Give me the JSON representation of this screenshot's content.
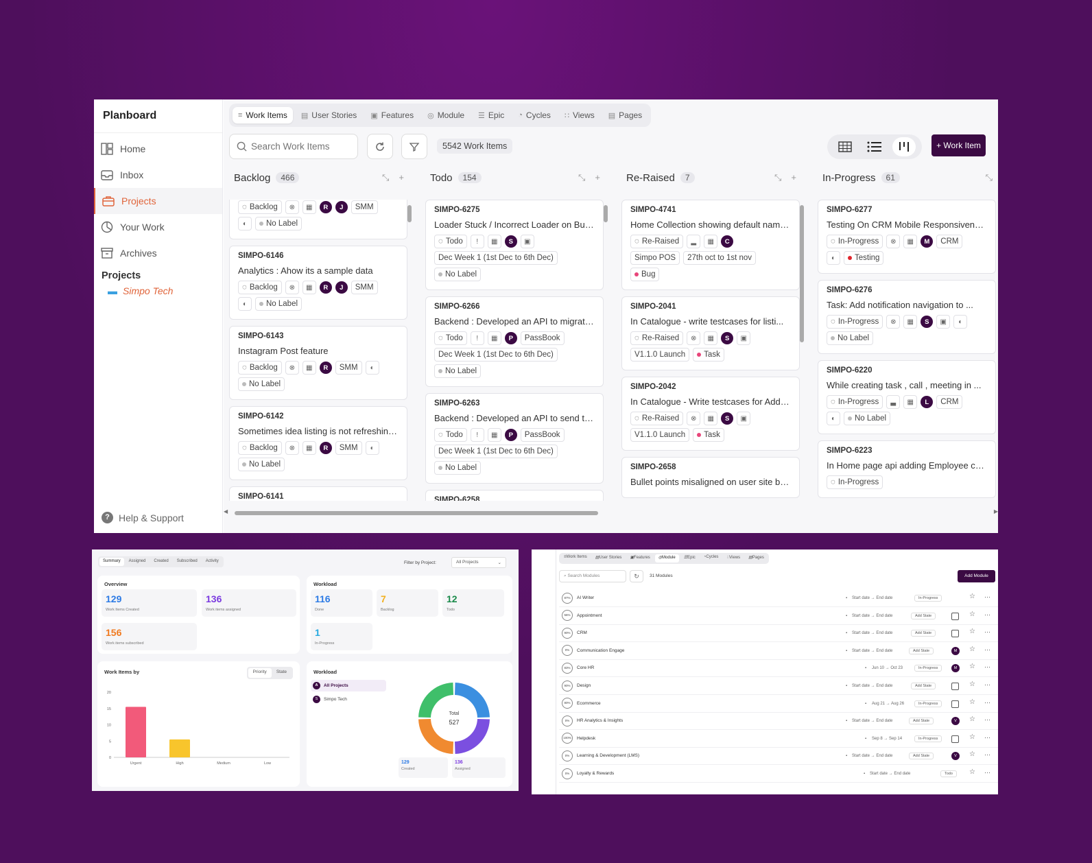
{
  "app": {
    "title": "Planboard"
  },
  "sidebar": {
    "items": [
      {
        "label": "Home",
        "icon": "layout-icon"
      },
      {
        "label": "Inbox",
        "icon": "inbox-icon"
      },
      {
        "label": "Projects",
        "icon": "briefcase-icon"
      },
      {
        "label": "Your Work",
        "icon": "chart-pie-icon"
      },
      {
        "label": "Archives",
        "icon": "archive-icon"
      }
    ],
    "projects_title": "Projects",
    "project": "Simpo Tech",
    "help": "Help & Support"
  },
  "tabs": [
    "Work Items",
    "User Stories",
    "Features",
    "Module",
    "Epic",
    "Cycles",
    "Views",
    "Pages"
  ],
  "toolbar": {
    "search_placeholder": "Search Work Items",
    "count": "5542 Work Items",
    "add_label": "+ Work Item"
  },
  "columns": [
    {
      "title": "Backlog",
      "count": "466",
      "cards": [
        {
          "id": "",
          "title": "",
          "rows": [
            [
              {
                "c": "Backlog"
              },
              {
                "x": "⊗"
              },
              {
                "x": "▦"
              },
              {
                "av": "R"
              },
              {
                "av": "J"
              },
              {
                "c": "SMM"
              }
            ],
            [
              {
                "x": "◐"
              },
              {
                "dot": "#bbb",
                "c": "No Label"
              }
            ]
          ]
        },
        {
          "id": "SIMPO-6146",
          "title": "Analytics : Ahow its a sample data",
          "rows": [
            [
              {
                "c": "Backlog"
              },
              {
                "x": "⊗"
              },
              {
                "x": "▦"
              },
              {
                "av": "R"
              },
              {
                "av": "J"
              },
              {
                "c": "SMM"
              }
            ],
            [
              {
                "x": "◐"
              },
              {
                "dot": "#bbb",
                "c": "No Label"
              }
            ]
          ]
        },
        {
          "id": "SIMPO-6143",
          "title": "Instagram Post feature",
          "rows": [
            [
              {
                "c": "Backlog"
              },
              {
                "x": "⊗"
              },
              {
                "x": "▦"
              },
              {
                "av": "R"
              },
              {
                "c": "SMM"
              },
              {
                "x": "◐"
              }
            ],
            [
              {
                "dot": "#bbb",
                "c": "No Label"
              }
            ]
          ]
        },
        {
          "id": "SIMPO-6142",
          "title": "Sometimes idea listing is not refreshing...",
          "rows": [
            [
              {
                "c": "Backlog"
              },
              {
                "x": "⊗"
              },
              {
                "x": "▦"
              },
              {
                "av": "R"
              },
              {
                "c": "SMM"
              },
              {
                "x": "◐"
              }
            ],
            [
              {
                "dot": "#bbb",
                "c": "No Label"
              }
            ]
          ]
        },
        {
          "id": "SIMPO-6141",
          "title": "",
          "rows": []
        }
      ]
    },
    {
      "title": "Todo",
      "count": "154",
      "cards": [
        {
          "id": "SIMPO-6275",
          "title": "Loader Stuck / Incorrect Loader on Busin...",
          "rows": [
            [
              {
                "c": "Todo"
              },
              {
                "x": "!"
              },
              {
                "x": "▦"
              },
              {
                "av": "S"
              },
              {
                "x": "▣"
              }
            ],
            [
              {
                "c": "Dec Week 1 (1st Dec to 6th Dec)"
              }
            ],
            [
              {
                "dot": "#bbb",
                "c": "No Label"
              }
            ]
          ]
        },
        {
          "id": "SIMPO-6266",
          "title": "Backend : Developed an API to migrate th...",
          "rows": [
            [
              {
                "c": "Todo"
              },
              {
                "x": "!"
              },
              {
                "x": "▦"
              },
              {
                "av": "P"
              },
              {
                "c": "PassBook"
              }
            ],
            [
              {
                "c": "Dec Week 1 (1st Dec to 6th Dec)"
              }
            ],
            [
              {
                "dot": "#bbb",
                "c": "No Label"
              }
            ]
          ]
        },
        {
          "id": "SIMPO-6263",
          "title": "Backend : Developed an API to send the u...",
          "rows": [
            [
              {
                "c": "Todo"
              },
              {
                "x": "!"
              },
              {
                "x": "▦"
              },
              {
                "av": "P"
              },
              {
                "c": "PassBook"
              }
            ],
            [
              {
                "c": "Dec Week 1 (1st Dec to 6th Dec)"
              }
            ],
            [
              {
                "dot": "#bbb",
                "c": "No Label"
              }
            ]
          ]
        },
        {
          "id": "SIMPO-6258",
          "title": "",
          "rows": []
        }
      ]
    },
    {
      "title": "Re-Raised",
      "count": "7",
      "cards": [
        {
          "id": "SIMPO-4741",
          "title": "Home Collection showing default name(in ...",
          "rows": [
            [
              {
                "c": "Re-Raised"
              },
              {
                "x": "▂"
              },
              {
                "x": "▦"
              },
              {
                "av": "C"
              }
            ],
            [
              {
                "c": "Simpo POS"
              },
              {
                "c": "27th oct to 1st nov"
              }
            ],
            [
              {
                "dot": "#e8457a",
                "c": "Bug"
              }
            ]
          ]
        },
        {
          "id": "SIMPO-2041",
          "title": "In Catalogue - write testcases for listi...",
          "rows": [
            [
              {
                "c": "Re-Raised"
              },
              {
                "x": "⊗"
              },
              {
                "x": "▦"
              },
              {
                "av": "S"
              },
              {
                "x": "▣"
              }
            ],
            [
              {
                "c": "V1.1.0 Launch"
              },
              {
                "dot": "#e8457a",
                "c": "Task"
              }
            ]
          ]
        },
        {
          "id": "SIMPO-2042",
          "title": "In Catalogue - Write testcases for Add n...",
          "rows": [
            [
              {
                "c": "Re-Raised"
              },
              {
                "x": "⊗"
              },
              {
                "x": "▦"
              },
              {
                "av": "S"
              },
              {
                "x": "▣"
              }
            ],
            [
              {
                "c": "V1.1.0 Launch"
              },
              {
                "dot": "#e8457a",
                "c": "Task"
              }
            ]
          ]
        },
        {
          "id": "SIMPO-2658",
          "title": "Bullet points misaligned on user site bu...",
          "rows": []
        }
      ]
    },
    {
      "title": "In-Progress",
      "count": "61",
      "cards": [
        {
          "id": "SIMPO-6277",
          "title": "Testing On CRM Mobile Responsiveness",
          "rows": [
            [
              {
                "c": "In-Progress"
              },
              {
                "x": "⊗"
              },
              {
                "x": "▦"
              },
              {
                "av": "M"
              },
              {
                "c": "CRM"
              }
            ],
            [
              {
                "x": "◐"
              },
              {
                "dot": "#e0252d",
                "c": "Testing"
              }
            ]
          ]
        },
        {
          "id": "SIMPO-6276",
          "title": "Task: Add notification navigation to ...",
          "rows": [
            [
              {
                "c": "In-Progress"
              },
              {
                "x": "⊗"
              },
              {
                "x": "▦"
              },
              {
                "av": "S"
              },
              {
                "x": "▣"
              },
              {
                "x": "◐"
              }
            ],
            [
              {
                "dot": "#bbb",
                "c": "No Label"
              }
            ]
          ]
        },
        {
          "id": "SIMPO-6220",
          "title": "While creating task , call , meeting in ...",
          "rows": [
            [
              {
                "c": "In-Progress"
              },
              {
                "x": "▃"
              },
              {
                "x": "▦"
              },
              {
                "av": "L"
              },
              {
                "c": "CRM"
              }
            ],
            [
              {
                "x": "◐"
              },
              {
                "dot": "#bbb",
                "c": "No Label"
              }
            ]
          ]
        },
        {
          "id": "SIMPO-6223",
          "title": "In Home page api adding Employee count d...",
          "rows": [
            [
              {
                "c": "In-Progress"
              }
            ]
          ]
        }
      ]
    }
  ],
  "summary": {
    "tabs": [
      "Summary",
      "Assigned",
      "Created",
      "Subscribed",
      "Activity"
    ],
    "filter_label": "Filter by Project:",
    "filter_value": "All Projects",
    "overview_title": "Overview",
    "overview": [
      {
        "n": "129",
        "l": "Work Items Created",
        "color": "#2d7be5"
      },
      {
        "n": "136",
        "l": "Work items assigned",
        "color": "#7b3ae0"
      },
      {
        "n": "156",
        "l": "Work items subscribed",
        "color": "#f07a20"
      }
    ],
    "workload_title": "Workload",
    "workload": [
      {
        "n": "116",
        "l": "Done",
        "color": "#2d7be5"
      },
      {
        "n": "7",
        "l": "Backlog",
        "color": "#f2b01e"
      },
      {
        "n": "12",
        "l": "Todo",
        "color": "#1a8a4a"
      },
      {
        "n": "1",
        "l": "In-Progress",
        "color": "#26a9e0"
      }
    ],
    "by_title": "Work Items by",
    "by_tabs": [
      "Priority",
      "State"
    ],
    "workload2_title": "Workload",
    "projects": [
      {
        "av": "A",
        "label": "All Projects"
      },
      {
        "av": "S",
        "label": "Simpo Tech"
      }
    ],
    "donut": {
      "total_label": "Total",
      "total": "527",
      "created": "129",
      "created_label": "Created",
      "assigned": "136",
      "assigned_label": "Assigned",
      "segments": [
        {
          "value": 0.25,
          "color": "#3b8fe0"
        },
        {
          "value": 0.25,
          "color": "#7b4fe0"
        },
        {
          "value": 0.25,
          "color": "#f08a30"
        },
        {
          "value": 0.25,
          "color": "#3fbf6a"
        }
      ]
    }
  },
  "chart_data": {
    "type": "bar",
    "categories": [
      "Urgent",
      "High",
      "Medium",
      "Low"
    ],
    "values": [
      15.5,
      5.5,
      0,
      0
    ],
    "colors": [
      "#f25a7a",
      "#f8c52c",
      "#999999",
      "#999999"
    ],
    "ylim": [
      0,
      20
    ],
    "yticks": [
      "20",
      "15",
      "10",
      "5",
      "0"
    ]
  },
  "modules": {
    "tabs": [
      "Work Items",
      "User Stories",
      "Features",
      "Module",
      "Epic",
      "Cycles",
      "Views",
      "Pages"
    ],
    "search_placeholder": "Search Modules",
    "count": "31 Modules",
    "add_label": "Add Module",
    "rows": [
      {
        "pct": "87%",
        "name": "AI Writer",
        "date": "Start date → End date",
        "state": "In-Progress",
        "lead": ""
      },
      {
        "pct": "56%",
        "name": "Appointment",
        "date": "Start date → End date",
        "state": "Add State",
        "lead": "box"
      },
      {
        "pct": "90%",
        "name": "CRM",
        "date": "Start date → End date",
        "state": "Add State",
        "lead": "box"
      },
      {
        "pct": "0%",
        "name": "Communication Engage",
        "date": "Start date → End date",
        "state": "Add State",
        "lead": "M"
      },
      {
        "pct": "83%",
        "name": "Core HR",
        "date": "Jun 10 → Oct 23",
        "state": "In-Progress",
        "lead": "M"
      },
      {
        "pct": "90%",
        "name": "Design",
        "date": "Start date → End date",
        "state": "Add State",
        "lead": "box"
      },
      {
        "pct": "80%",
        "name": "Ecommerce",
        "date": "Aug 21 → Aug 26",
        "state": "In-Progress",
        "lead": "box"
      },
      {
        "pct": "0%",
        "name": "HR Analytics & Insights",
        "date": "Start date → End date",
        "state": "Add State",
        "lead": "V"
      },
      {
        "pct": "100%",
        "name": "Helpdesk",
        "date": "Sep 8 → Sep 14",
        "state": "In-Progress",
        "lead": "box"
      },
      {
        "pct": "0%",
        "name": "Learning & Development (LMS)",
        "date": "Start date → End date",
        "state": "Add State",
        "lead": "V"
      },
      {
        "pct": "0%",
        "name": "Loyalty & Rewards",
        "date": "Start date → End date",
        "state": "Todo",
        "lead": ""
      }
    ]
  }
}
